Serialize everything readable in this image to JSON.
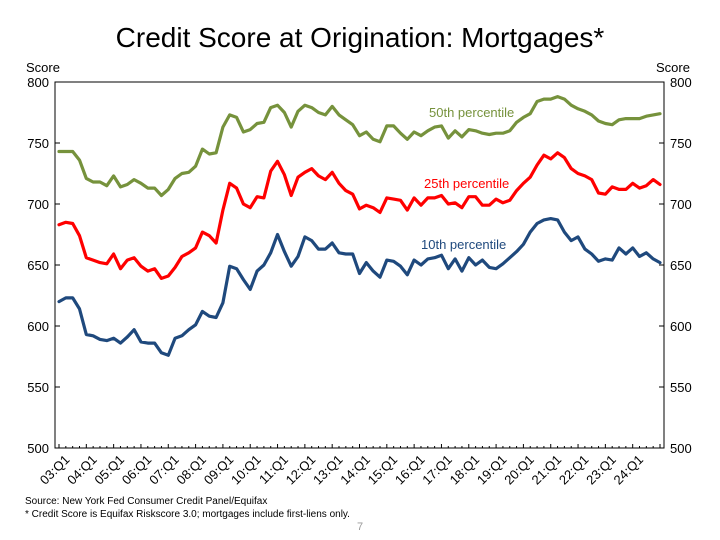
{
  "title": "Credit Score at Origination: Mortgages*",
  "footnotes": {
    "source": "Source: New York Fed Consumer Credit Panel/Equifax",
    "note": "* Credit Score is Equifax Riskscore 3.0; mortgages include first-liens only."
  },
  "page_number": "7",
  "chart_data": {
    "type": "line",
    "ylabel_left": "Score",
    "ylabel_right": "Score",
    "ylim": [
      500,
      800
    ],
    "y_ticks": [
      500,
      550,
      600,
      650,
      700,
      750,
      800
    ],
    "grid": false,
    "x_tick_labels": [
      "03:Q1",
      "04:Q1",
      "05:Q1",
      "06:Q1",
      "07:Q1",
      "08:Q1",
      "09:Q1",
      "10:Q1",
      "11:Q1",
      "12:Q1",
      "13:Q1",
      "14:Q1",
      "15:Q1",
      "16:Q1",
      "17:Q1",
      "18:Q1",
      "19:Q1",
      "20:Q1",
      "21:Q1",
      "22:Q1",
      "23:Q1",
      "24:Q1"
    ],
    "x_start": "2003:Q1",
    "series": [
      {
        "name": "50th percentile",
        "color": "#76923C",
        "values": [
          743,
          743,
          743,
          736,
          721,
          718,
          718,
          715,
          723,
          714,
          716,
          720,
          717,
          713,
          713,
          707,
          712,
          721,
          725,
          726,
          731,
          745,
          741,
          742,
          763,
          773,
          771,
          759,
          761,
          766,
          767,
          779,
          781,
          775,
          763,
          776,
          781,
          779,
          775,
          773,
          780,
          773,
          769,
          765,
          756,
          759,
          753,
          751,
          764,
          764,
          758,
          753,
          759,
          756,
          760,
          763,
          764,
          754,
          760,
          755,
          761,
          760,
          758,
          757,
          758,
          758,
          760,
          767,
          771,
          774,
          784,
          786,
          786,
          788,
          786,
          781,
          778,
          776,
          773,
          768,
          766,
          765,
          769,
          770,
          770,
          770,
          772,
          773,
          774
        ]
      },
      {
        "name": "25th percentile",
        "color": "#FF0000",
        "values": [
          683,
          685,
          684,
          674,
          656,
          654,
          652,
          651,
          659,
          647,
          654,
          656,
          649,
          645,
          647,
          639,
          641,
          648,
          657,
          660,
          664,
          677,
          674,
          668,
          695,
          717,
          713,
          700,
          697,
          706,
          705,
          727,
          735,
          724,
          707,
          722,
          726,
          729,
          723,
          720,
          726,
          717,
          711,
          708,
          696,
          699,
          697,
          693,
          705,
          704,
          703,
          695,
          705,
          699,
          705,
          705,
          707,
          700,
          701,
          697,
          706,
          706,
          699,
          699,
          704,
          701,
          703,
          711,
          717,
          722,
          732,
          740,
          737,
          742,
          738,
          729,
          725,
          723,
          720,
          709,
          708,
          714,
          712,
          712,
          717,
          713,
          715,
          720,
          716
        ]
      },
      {
        "name": "10th percentile",
        "color": "#1F497D",
        "values": [
          620,
          623,
          623,
          614,
          593,
          592,
          589,
          588,
          590,
          586,
          591,
          597,
          587,
          586,
          586,
          578,
          576,
          590,
          592,
          597,
          601,
          612,
          608,
          607,
          619,
          649,
          647,
          638,
          630,
          645,
          650,
          660,
          675,
          661,
          649,
          657,
          673,
          670,
          663,
          663,
          668,
          660,
          659,
          659,
          643,
          652,
          645,
          640,
          654,
          653,
          649,
          642,
          654,
          650,
          655,
          656,
          658,
          647,
          655,
          645,
          656,
          650,
          654,
          648,
          647,
          651,
          656,
          661,
          667,
          677,
          684,
          687,
          688,
          687,
          677,
          670,
          673,
          663,
          659,
          653,
          655,
          654,
          664,
          659,
          664,
          657,
          660,
          655,
          652
        ]
      }
    ],
    "annotations": [
      "50th percentile",
      "25th percentile",
      "10th percentile"
    ]
  }
}
